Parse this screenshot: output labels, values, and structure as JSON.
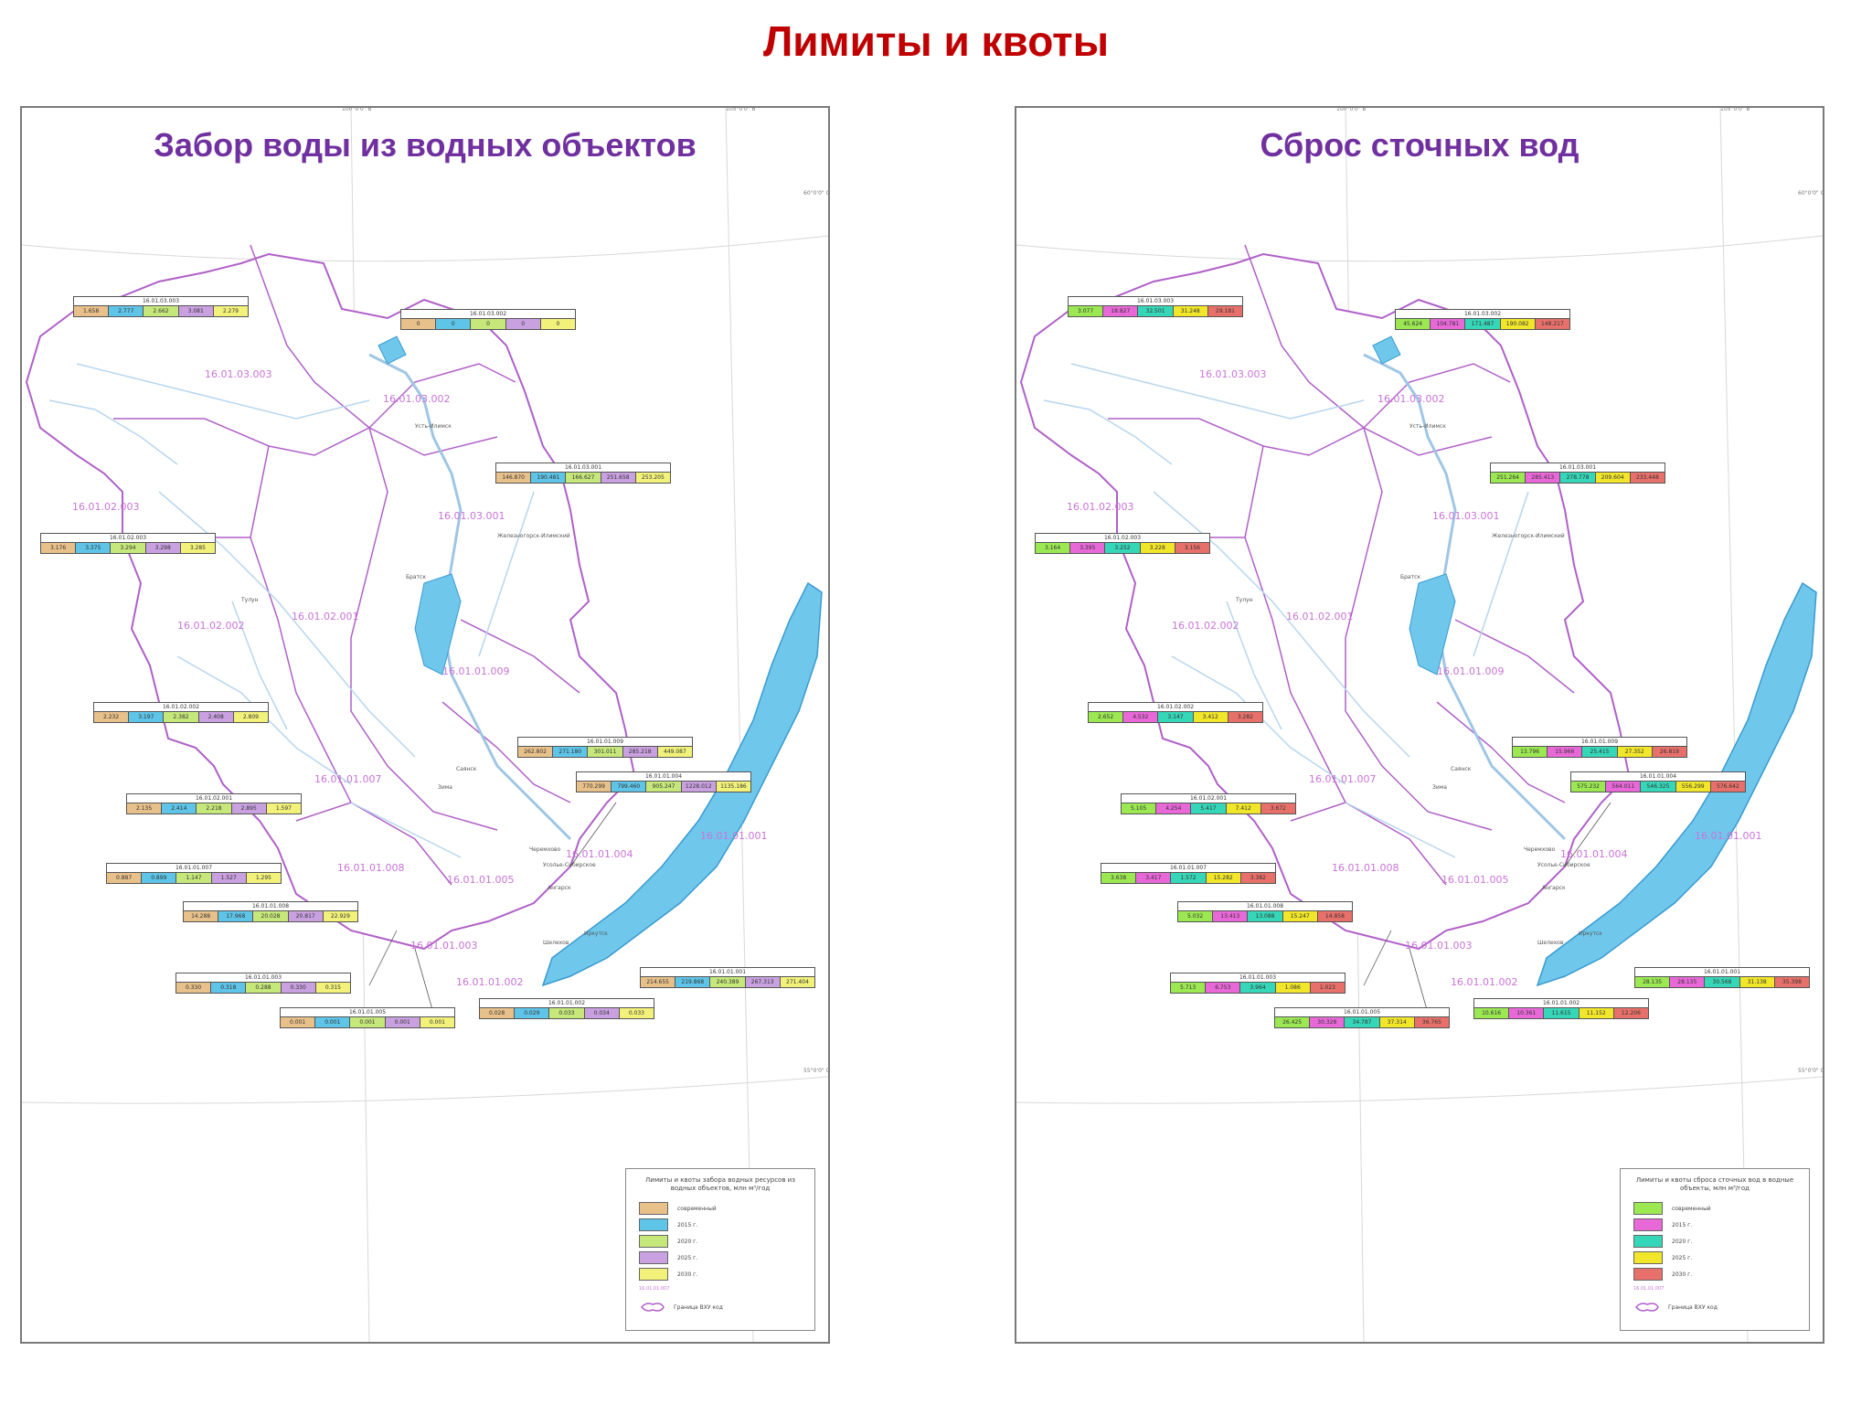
{
  "slide_title": "Лимиты и квоты",
  "colors": {
    "title": "#c00000",
    "panel_title": "#7030a0",
    "basin_border": "#b060c8",
    "river": "#9fc6e4",
    "lake": "#6fc8ec",
    "lake_stroke": "#3a9ad0"
  },
  "panels": [
    {
      "id": "intake",
      "title": "Забор воды из водных объектов",
      "legend": {
        "title": "Лимиты и квоты забора водных ресурсов из водных объектов, млн м³/год",
        "items": [
          {
            "label": "современный",
            "color": "#e8c08a"
          },
          {
            "label": "2015 г.",
            "color": "#5ec4e8"
          },
          {
            "label": "2020 г.",
            "color": "#c6e87a"
          },
          {
            "label": "2025 г.",
            "color": "#c9a0e0"
          },
          {
            "label": "2030 г.",
            "color": "#f2f27a"
          }
        ],
        "code_sample": "16.01.01.007",
        "boundary_label": "Граница ВХУ код"
      },
      "labels": [
        {
          "code": "16.01.03.003",
          "values": [
            "1.658",
            "2.777",
            "2.662",
            "3.081",
            "2.279"
          ]
        },
        {
          "code": "16.01.03.002",
          "values": [
            "0",
            "0",
            "0",
            "0",
            "0"
          ]
        },
        {
          "code": "16.01.03.001",
          "values": [
            "146.870",
            "190.481",
            "166.627",
            "251.658",
            "253.205"
          ]
        },
        {
          "code": "16.01.02.003",
          "values": [
            "3.176",
            "3.375",
            "3.294",
            "3.298",
            "3.285"
          ]
        },
        {
          "code": "16.01.02.002",
          "values": [
            "2.232",
            "3.197",
            "2.382",
            "2.408",
            "2.809"
          ]
        },
        {
          "code": "16.01.01.009",
          "values": [
            "262.802",
            "271.180",
            "301.011",
            "285.218",
            "449.087"
          ]
        },
        {
          "code": "16.01.01.004",
          "values": [
            "770.299",
            "799.460",
            "905.247",
            "1228.012",
            "1135.186"
          ]
        },
        {
          "code": "16.01.02.001",
          "values": [
            "2.135",
            "2.414",
            "2.218",
            "2.895",
            "1.597"
          ]
        },
        {
          "code": "16.01.01.007",
          "values": [
            "0.887",
            "0.899",
            "1.147",
            "1.527",
            "1.295"
          ]
        },
        {
          "code": "16.01.01.008",
          "values": [
            "14.288",
            "17.968",
            "20.028",
            "20.817",
            "22.929"
          ]
        },
        {
          "code": "16.01.01.003",
          "values": [
            "0.330",
            "0.318",
            "0.288",
            "0.330",
            "0.315"
          ]
        },
        {
          "code": "16.01.01.001",
          "values": [
            "214.655",
            "219.868",
            "240.389",
            "267.313",
            "271.404"
          ]
        },
        {
          "code": "16.01.01.002",
          "values": [
            "0.028",
            "0.029",
            "0.033",
            "0.034",
            "0.033"
          ]
        },
        {
          "code": "16.01.01.005",
          "values": [
            "0.001",
            "0.001",
            "0.001",
            "0.001",
            "0.001"
          ]
        }
      ]
    },
    {
      "id": "discharge",
      "title": "Сброс сточных вод",
      "legend": {
        "title": "Лимиты и квоты сброса сточных вод в водные объекты, млн м³/год",
        "items": [
          {
            "label": "современный",
            "color": "#9be852"
          },
          {
            "label": "2015 г.",
            "color": "#e868d8"
          },
          {
            "label": "2020 г.",
            "color": "#36d6b8"
          },
          {
            "label": "2025 г.",
            "color": "#f2e62a"
          },
          {
            "label": "2030 г.",
            "color": "#e8706a"
          }
        ],
        "code_sample": "16.01.01.007",
        "boundary_label": "Граница ВХУ код"
      },
      "labels": [
        {
          "code": "16.01.03.003",
          "values": [
            "3.077",
            "18.827",
            "32.501",
            "31.248",
            "29.181"
          ]
        },
        {
          "code": "16.01.03.002",
          "values": [
            "45.624",
            "104.781",
            "171.487",
            "190.082",
            "148.217"
          ]
        },
        {
          "code": "16.01.03.001",
          "values": [
            "251.264",
            "285.413",
            "278.778",
            "209.604",
            "233.448"
          ]
        },
        {
          "code": "16.01.02.003",
          "values": [
            "3.164",
            "3.395",
            "3.252",
            "3.228",
            "3.156"
          ]
        },
        {
          "code": "16.01.02.002",
          "values": [
            "2.652",
            "4.532",
            "3.147",
            "3.412",
            "3.282"
          ]
        },
        {
          "code": "16.01.01.009",
          "values": [
            "13.796",
            "15.966",
            "25.415",
            "27.352",
            "26.819"
          ]
        },
        {
          "code": "16.01.01.004",
          "values": [
            "575.232",
            "564.011",
            "546.325",
            "556.299",
            "576.642"
          ]
        },
        {
          "code": "16.01.02.001",
          "values": [
            "5.105",
            "4.254",
            "5.417",
            "7.412",
            "3.672"
          ]
        },
        {
          "code": "16.01.01.007",
          "values": [
            "3.638",
            "3.417",
            "1.572",
            "15.282",
            "3.382"
          ]
        },
        {
          "code": "16.01.01.008",
          "values": [
            "5.032",
            "13.413",
            "13.088",
            "15.247",
            "14.858"
          ]
        },
        {
          "code": "16.01.01.003",
          "values": [
            "5.713",
            "6.753",
            "3.964",
            "1.086",
            "1.023"
          ]
        },
        {
          "code": "16.01.01.001",
          "values": [
            "28.135",
            "28.135",
            "30.568",
            "31.138",
            "35.398"
          ]
        },
        {
          "code": "16.01.01.002",
          "values": [
            "10.616",
            "10.361",
            "11.615",
            "11.152",
            "12.206"
          ]
        },
        {
          "code": "16.01.01.005",
          "values": [
            "26.425",
            "30.328",
            "34.787",
            "37.314",
            "36.765"
          ]
        }
      ]
    }
  ],
  "basin_codes": [
    "16.01.03.003",
    "16.01.03.002",
    "16.01.03.001",
    "16.01.02.003",
    "16.01.02.002",
    "16.01.02.001",
    "16.01.01.009",
    "16.01.01.007",
    "16.01.01.008",
    "16.01.01.005",
    "16.01.01.003",
    "16.01.01.004",
    "16.01.01.002",
    "16.01.01.001"
  ],
  "lake_code": "16.01.01.001",
  "cities": [
    "Усть-Илимск",
    "Железногорск-Илимский",
    "Братск",
    "Тулун",
    "Саянск",
    "Зима",
    "Черемхово",
    "Ангарск",
    "Иркутск",
    "Шелехов",
    "Усолье-Сибирское"
  ],
  "coords": {
    "top": [
      "100°0'0\" В",
      "105°0'0\" В"
    ],
    "bottom": [
      "100°0'0\" В",
      "105°0'0\" В"
    ],
    "side": [
      "60°0'0\" С",
      "55°0'0\" С"
    ]
  }
}
